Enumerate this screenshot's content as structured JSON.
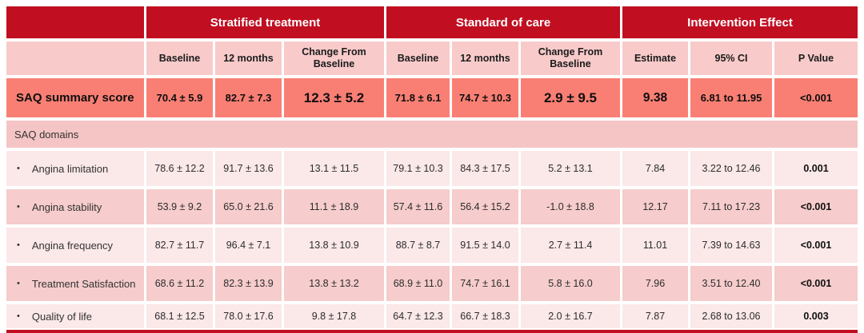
{
  "colors": {
    "header-red": "#C10E21",
    "subheader-pink": "#F8CACA",
    "summary-salmon": "#F97F74",
    "section-pink": "#F5C5C5",
    "row-light": "#FBE8E8",
    "row-alt": "#F6CCCC"
  },
  "chart_data": {
    "type": "table",
    "column_groups": [
      {
        "label": "Stratified treatment",
        "span": 3
      },
      {
        "label": "Standard of care",
        "span": 3
      },
      {
        "label": "Intervention Effect",
        "span": 3
      }
    ],
    "columns": [
      "Baseline",
      "12 months",
      "Change From Baseline",
      "Baseline",
      "12 months",
      "Change From Baseline",
      "Estimate",
      "95% CI",
      "P Value"
    ],
    "summary_row": {
      "label": "SAQ summary score",
      "values": [
        "70.4 ± 5.9",
        "82.7 ± 7.3",
        "12.3 ± 5.2",
        "71.8 ± 6.1",
        "74.7 ± 10.3",
        "2.9 ± 9.5",
        "9.38",
        "6.81 to 11.95",
        "<0.001"
      ]
    },
    "section_label": "SAQ domains",
    "bullet": "•",
    "domain_rows": [
      {
        "label": "Angina limitation",
        "values": [
          "78.6 ± 12.2",
          "91.7 ± 13.6",
          "13.1 ± 11.5",
          "79.1 ± 10.3",
          "84.3 ± 17.5",
          "5.2 ± 13.1",
          "7.84",
          "3.22 to 12.46",
          "0.001"
        ]
      },
      {
        "label": "Angina stability",
        "values": [
          "53.9 ± 9.2",
          "65.0 ± 21.6",
          "11.1 ± 18.9",
          "57.4 ± 11.6",
          "56.4 ± 15.2",
          "-1.0 ± 18.8",
          "12.17",
          "7.11 to 17.23",
          "<0.001"
        ]
      },
      {
        "label": "Angina frequency",
        "values": [
          "82.7 ± 11.7",
          "96.4 ± 7.1",
          "13.8 ± 10.9",
          "88.7 ± 8.7",
          "91.5 ± 14.0",
          "2.7 ± 11.4",
          "11.01",
          "7.39 to 14.63",
          "<0.001"
        ]
      },
      {
        "label": "Treatment Satisfaction",
        "values": [
          "68.6 ± 11.2",
          "82.3 ± 13.9",
          "13.8 ± 13.2",
          "68.9 ± 11.0",
          "74.7 ± 16.1",
          "5.8 ± 16.0",
          "7.96",
          "3.51 to 12.40",
          "<0.001"
        ]
      },
      {
        "label": "Quality of life",
        "values": [
          "68.1 ± 12.5",
          "78.0 ± 17.6",
          "9.8 ± 17.8",
          "64.7 ± 12.3",
          "66.7 ± 18.3",
          "2.0 ± 16.7",
          "7.87",
          "2.68 to 13.06",
          "0.003"
        ]
      }
    ]
  }
}
